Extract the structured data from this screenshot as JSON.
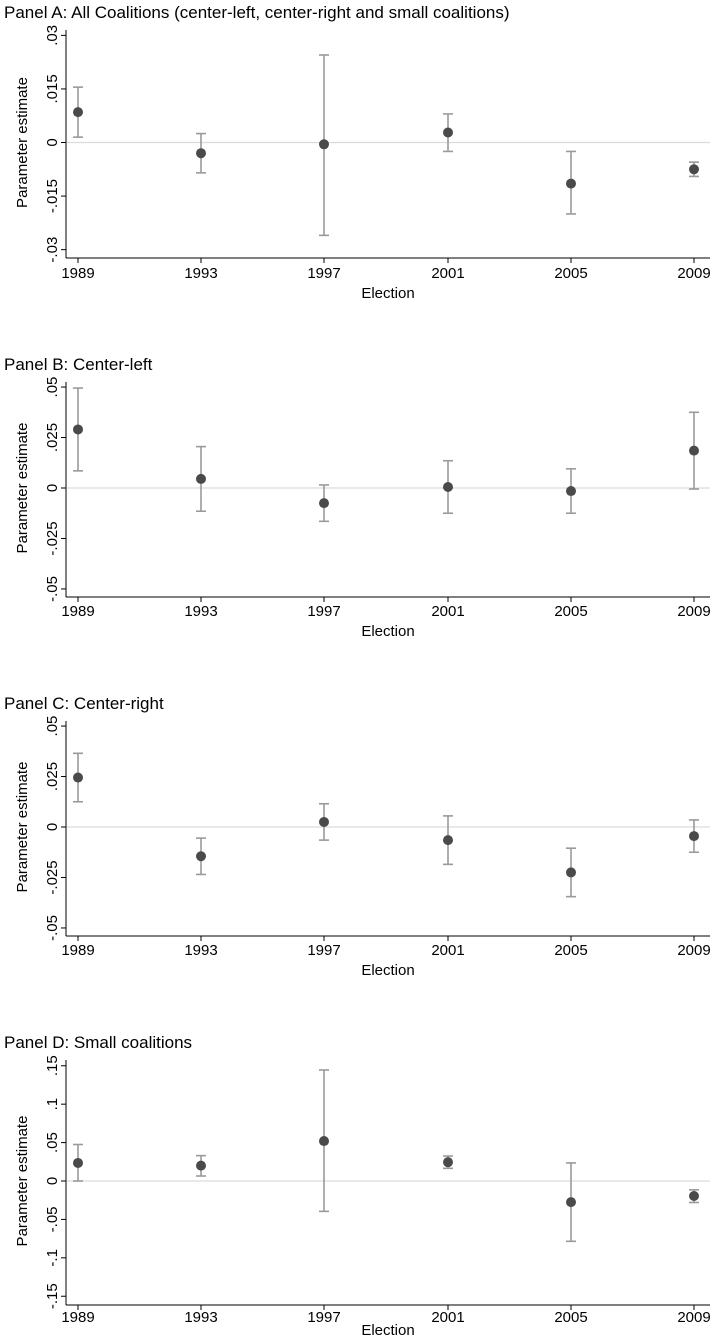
{
  "chart_data": [
    {
      "type": "scatter",
      "title": "Panel A: All Coalitions (center-left, center-right and small coalitions)",
      "xlabel": "Election",
      "ylabel": "Parameter estimate",
      "categories": [
        "1989",
        "1993",
        "1997",
        "2001",
        "2005",
        "2009"
      ],
      "yticks": [
        -0.03,
        -0.015,
        0,
        0.015,
        0.03
      ],
      "ytick_labels": [
        "-.03",
        "-.015",
        "0",
        ".015",
        ".03"
      ],
      "ylim": [
        -0.0315,
        0.0315
      ],
      "estimates": [
        0.0085,
        -0.003,
        -0.0005,
        0.0028,
        -0.0115,
        -0.0075
      ],
      "ci_lower": [
        0.0015,
        -0.0085,
        -0.026,
        -0.0025,
        -0.02,
        -0.0095
      ],
      "ci_upper": [
        0.0155,
        0.0025,
        0.0245,
        0.008,
        -0.0025,
        -0.0055
      ],
      "zero_line": true
    },
    {
      "type": "scatter",
      "title": "Panel B: Center-left",
      "xlabel": "Election",
      "ylabel": "Parameter estimate",
      "categories": [
        "1989",
        "1993",
        "1997",
        "2001",
        "2005",
        "2009"
      ],
      "yticks": [
        -0.05,
        -0.025,
        0,
        0.025,
        0.05
      ],
      "ytick_labels": [
        "-.05",
        "-.025",
        "0",
        ".025",
        ".05"
      ],
      "ylim": [
        -0.0525,
        0.0525
      ],
      "estimates": [
        0.029,
        0.0045,
        -0.0075,
        0.0005,
        -0.0015,
        0.0185
      ],
      "ci_lower": [
        0.0085,
        -0.0115,
        -0.0165,
        -0.0125,
        -0.0125,
        -0.0005
      ],
      "ci_upper": [
        0.0495,
        0.0205,
        0.0015,
        0.0135,
        0.0095,
        0.0375
      ],
      "zero_line": true
    },
    {
      "type": "scatter",
      "title": "Panel C: Center-right",
      "xlabel": "Election",
      "ylabel": "Parameter estimate",
      "categories": [
        "1989",
        "1993",
        "1997",
        "2001",
        "2005",
        "2009"
      ],
      "yticks": [
        -0.05,
        -0.025,
        0,
        0.025,
        0.05
      ],
      "ytick_labels": [
        "-.05",
        "-.025",
        "0",
        ".025",
        ".05"
      ],
      "ylim": [
        -0.0525,
        0.0525
      ],
      "estimates": [
        0.0245,
        -0.0145,
        0.0025,
        -0.0065,
        -0.0225,
        -0.0045
      ],
      "ci_lower": [
        0.0125,
        -0.0235,
        -0.0065,
        -0.0185,
        -0.0345,
        -0.0125
      ],
      "ci_upper": [
        0.0365,
        -0.0055,
        0.0115,
        0.0055,
        -0.0105,
        0.0035
      ],
      "zero_line": true
    },
    {
      "type": "scatter",
      "title": "Panel D: Small coalitions",
      "xlabel": "Election",
      "ylabel": "Parameter estimate",
      "categories": [
        "1989",
        "1993",
        "1997",
        "2001",
        "2005",
        "2009"
      ],
      "yticks": [
        -0.15,
        -0.1,
        -0.05,
        0,
        0.05,
        0.1,
        0.15
      ],
      "ytick_labels": [
        "-.15",
        "-.1",
        "-.05",
        "0",
        ".05",
        ".1",
        ".15"
      ],
      "ylim": [
        -0.1575,
        0.1575
      ],
      "estimates": [
        0.0235,
        0.02,
        0.052,
        0.0245,
        -0.0275,
        -0.0195
      ],
      "ci_lower": [
        0.0,
        0.0065,
        -0.0395,
        0.0165,
        -0.0785,
        -0.028
      ],
      "ci_upper": [
        0.0475,
        0.033,
        0.1445,
        0.0325,
        0.0235,
        -0.0115
      ],
      "zero_line": true
    }
  ]
}
